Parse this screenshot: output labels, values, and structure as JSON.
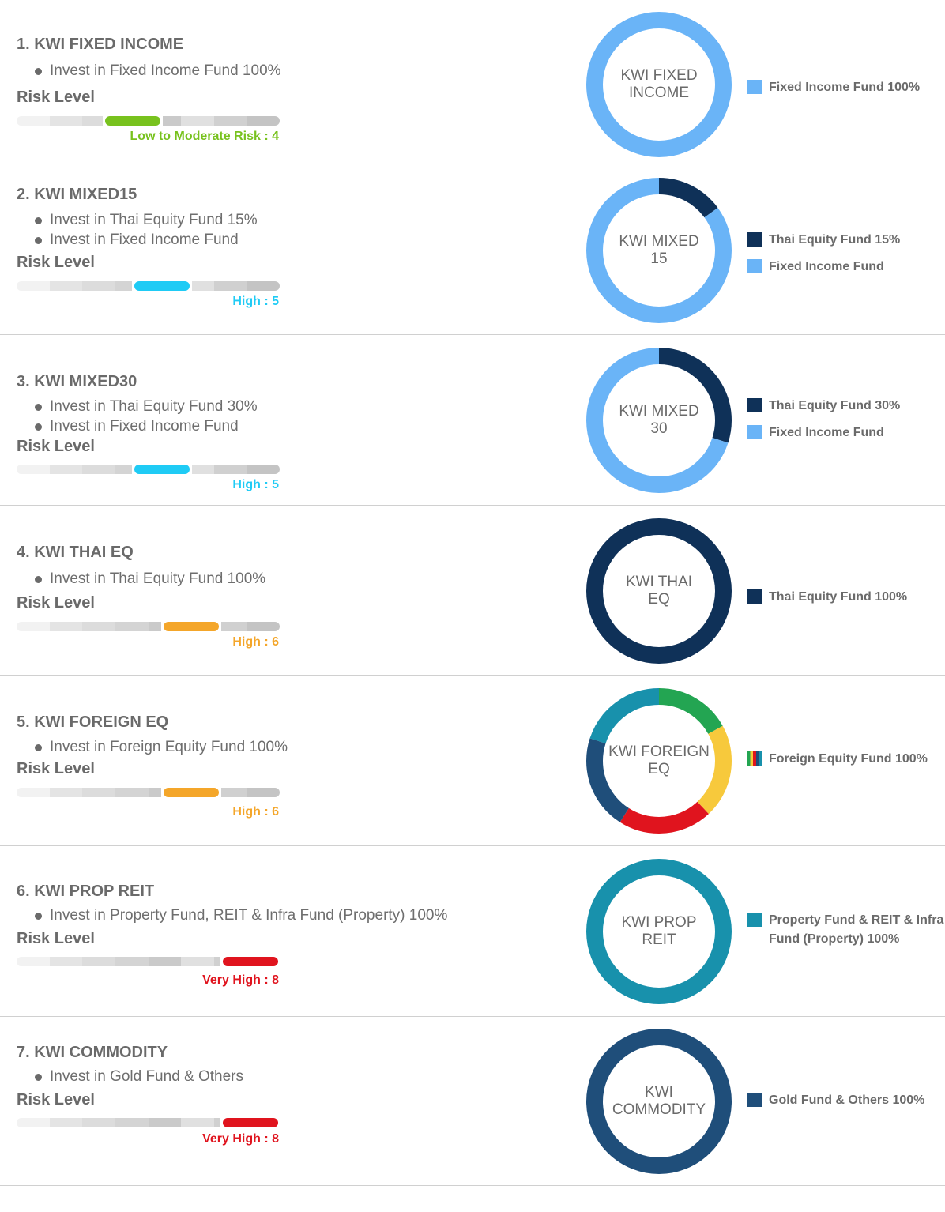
{
  "funds": [
    {
      "title": "1. KWI FIXED INCOME",
      "bullets": [
        "Invest in Fixed Income Fund 100%"
      ],
      "risk_label": "Risk Level",
      "risk_level": 4,
      "risk_text": "Low to Moderate Risk : 4",
      "risk_color": "#78c21e",
      "donut_label": [
        "KWI FIXED",
        "INCOME"
      ],
      "allocation": [
        {
          "name": "Fixed Income Fund",
          "pct": 100,
          "color": "#6ab4f7"
        }
      ],
      "legend": [
        {
          "label": "Fixed Income Fund 100%",
          "color": "#6ab4f7"
        }
      ]
    },
    {
      "title": "2. KWI MIXED15",
      "bullets": [
        "Invest in Thai Equity Fund 15%",
        "Invest in Fixed Income Fund"
      ],
      "risk_label": "Risk Level",
      "risk_level": 5,
      "risk_text": "High : 5",
      "risk_color": "#1fcbf5",
      "donut_label": [
        "KWI MIXED",
        "15"
      ],
      "allocation": [
        {
          "name": "Thai Equity Fund",
          "pct": 15,
          "color": "#0f3158"
        },
        {
          "name": "Fixed Income Fund",
          "pct": 85,
          "color": "#6ab4f7"
        }
      ],
      "legend": [
        {
          "label": "Thai Equity Fund 15%",
          "color": "#0f3158"
        },
        {
          "label": "Fixed Income Fund",
          "color": "#6ab4f7"
        }
      ]
    },
    {
      "title": "3. KWI MIXED30",
      "bullets": [
        "Invest in Thai Equity Fund 30%",
        "Invest in Fixed Income Fund"
      ],
      "risk_label": "Risk Level",
      "risk_level": 5,
      "risk_text": "High : 5",
      "risk_color": "#1fcbf5",
      "donut_label": [
        "KWI MIXED",
        "30"
      ],
      "allocation": [
        {
          "name": "Thai Equity Fund",
          "pct": 30,
          "color": "#0f3158"
        },
        {
          "name": "Fixed Income Fund",
          "pct": 70,
          "color": "#6ab4f7"
        }
      ],
      "legend": [
        {
          "label": "Thai Equity Fund 30%",
          "color": "#0f3158"
        },
        {
          "label": "Fixed Income Fund",
          "color": "#6ab4f7"
        }
      ]
    },
    {
      "title": "4. KWI THAI EQ",
      "bullets": [
        "Invest in Thai Equity Fund 100%"
      ],
      "risk_label": "Risk Level",
      "risk_level": 6,
      "risk_text": "High : 6",
      "risk_color": "#f4a62a",
      "donut_label": [
        "KWI THAI",
        "EQ"
      ],
      "allocation": [
        {
          "name": "Thai Equity Fund",
          "pct": 100,
          "color": "#0f3158"
        }
      ],
      "legend": [
        {
          "label": "Thai Equity Fund 100%",
          "color": "#0f3158"
        }
      ]
    },
    {
      "title": "5. KWI FOREIGN EQ",
      "bullets": [
        "Invest in Foreign Equity Fund 100%"
      ],
      "risk_label": "Risk Level",
      "risk_level": 6,
      "risk_text": "High : 6",
      "risk_color": "#f4a62a",
      "donut_label": [
        "KWI FOREIGN",
        "EQ"
      ],
      "allocation": [
        {
          "name": "green",
          "pct": 17,
          "color": "#23a552"
        },
        {
          "name": "yellow",
          "pct": 21,
          "color": "#f7c93c"
        },
        {
          "name": "red",
          "pct": 21,
          "color": "#e0141e"
        },
        {
          "name": "navy",
          "pct": 21,
          "color": "#1f4e7a"
        },
        {
          "name": "teal",
          "pct": 20,
          "color": "#1891ac"
        }
      ],
      "legend": [
        {
          "label": "Foreign Equity Fund 100%",
          "color": "multi"
        }
      ]
    },
    {
      "title": "6. KWI PROP REIT",
      "bullets": [
        "Invest in Property Fund, REIT & Infra Fund (Property) 100%"
      ],
      "risk_label": "Risk Level",
      "risk_level": 8,
      "risk_text": "Very High : 8",
      "risk_color": "#e0141e",
      "donut_label": [
        "KWI PROP",
        "REIT"
      ],
      "allocation": [
        {
          "name": "Property Fund & REIT & Infra Fund (Property)",
          "pct": 100,
          "color": "#1891ac"
        }
      ],
      "legend": [
        {
          "label": "Property Fund & REIT & Infra Fund (Property) 100%",
          "color": "#1891ac"
        }
      ]
    },
    {
      "title": "7. KWI COMMODITY",
      "bullets": [
        "Invest in Gold Fund & Others"
      ],
      "risk_label": "Risk Level",
      "risk_level": 8,
      "risk_text": "Very High : 8",
      "risk_color": "#e0141e",
      "donut_label": [
        "KWI",
        "COMMODITY"
      ],
      "allocation": [
        {
          "name": "Gold Fund & Others",
          "pct": 100,
          "color": "#1f4e7a"
        }
      ],
      "legend": [
        {
          "label": "Gold Fund & Others 100%",
          "color": "#1f4e7a"
        }
      ]
    }
  ],
  "risk_bar": {
    "levels": 8,
    "track_colors": [
      "#f2f2f2",
      "#e4e4e4",
      "#dcdcdc",
      "#d4d4d4",
      "#cacaca",
      "#e0e0e0",
      "#d0d0d0",
      "#c4c4c4"
    ],
    "colors": {
      "multi_swatch": [
        "#23a552",
        "#f7c93c",
        "#e0141e",
        "#1f4e7a",
        "#1891ac"
      ]
    }
  }
}
